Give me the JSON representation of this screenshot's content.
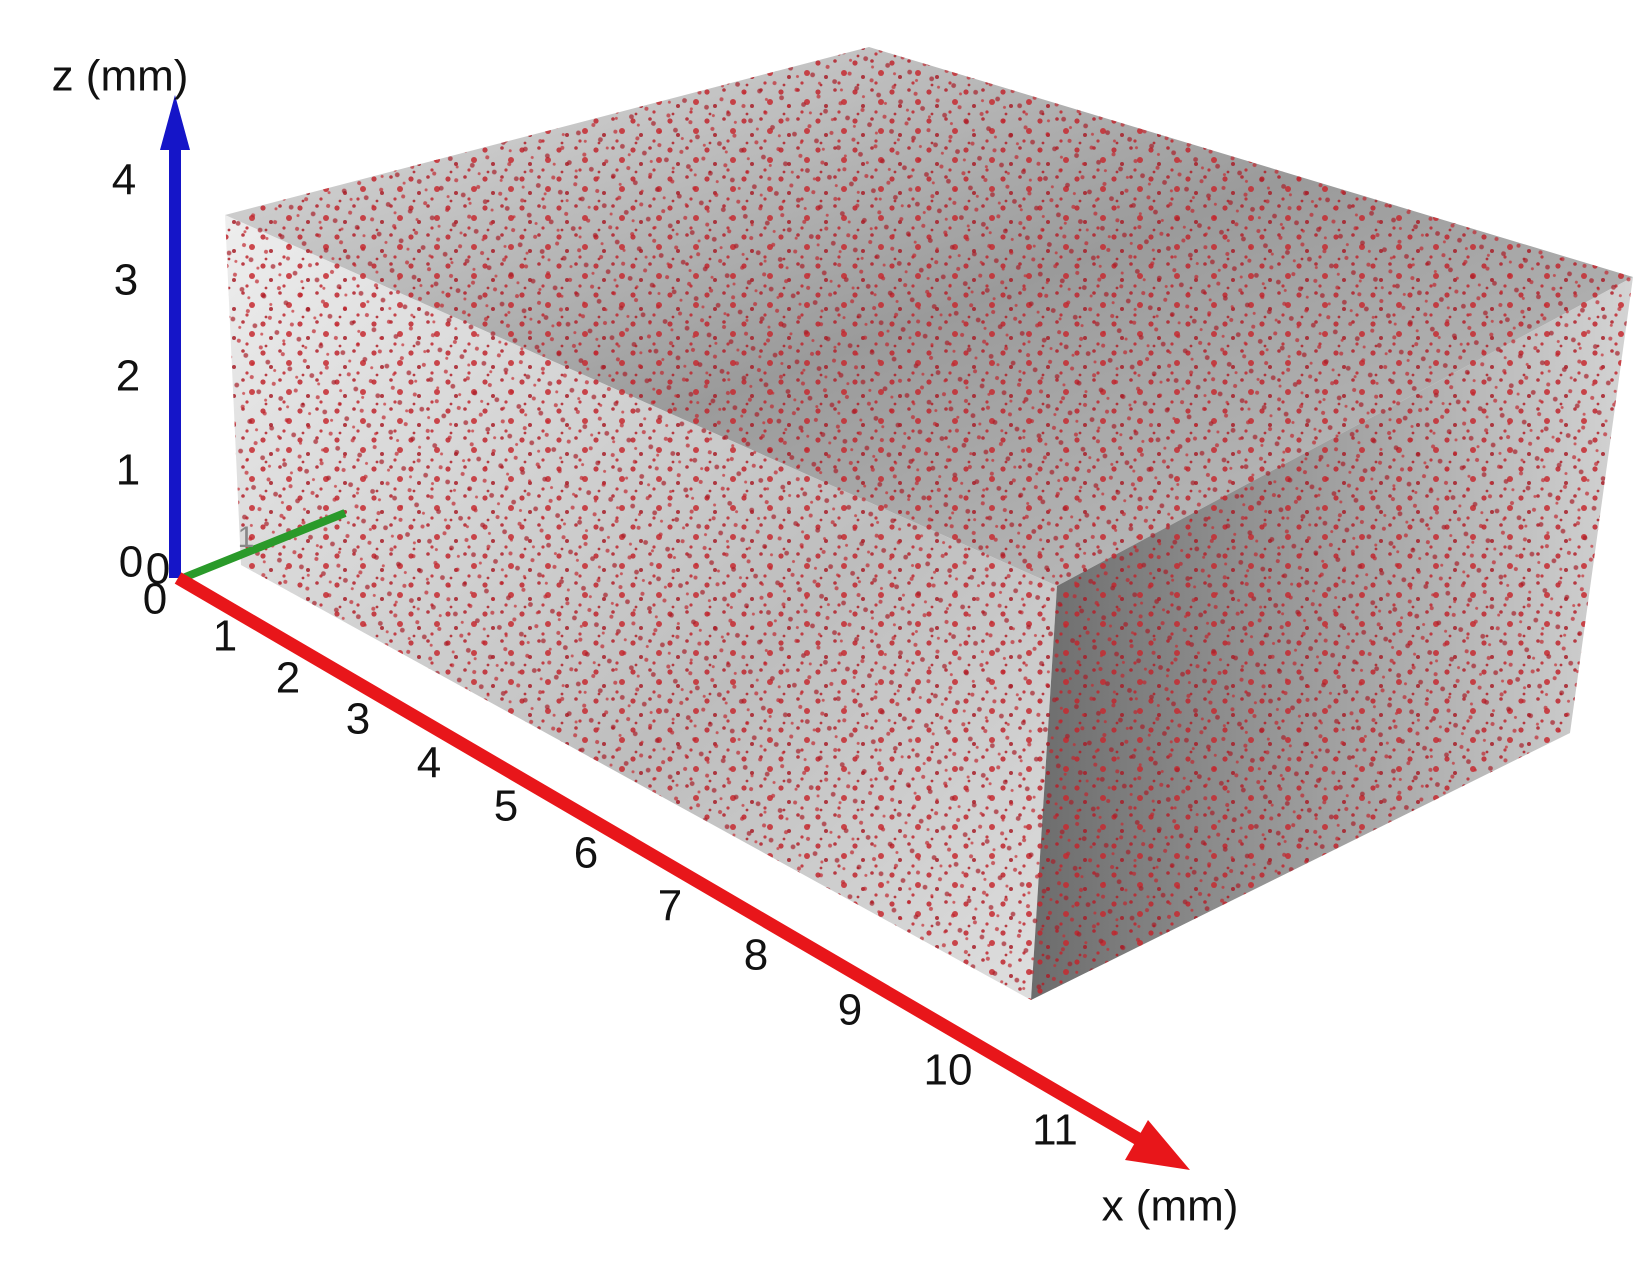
{
  "z_axis": {
    "label": "z (mm)",
    "ticks": [
      "0",
      "1",
      "2",
      "3",
      "4"
    ]
  },
  "y_axis": {
    "ticks": [
      "0",
      "1"
    ]
  },
  "x_axis": {
    "label": "x (mm)",
    "ticks": [
      "0",
      "1",
      "2",
      "3",
      "4",
      "5",
      "6",
      "7",
      "8",
      "9",
      "10",
      "11"
    ]
  }
}
